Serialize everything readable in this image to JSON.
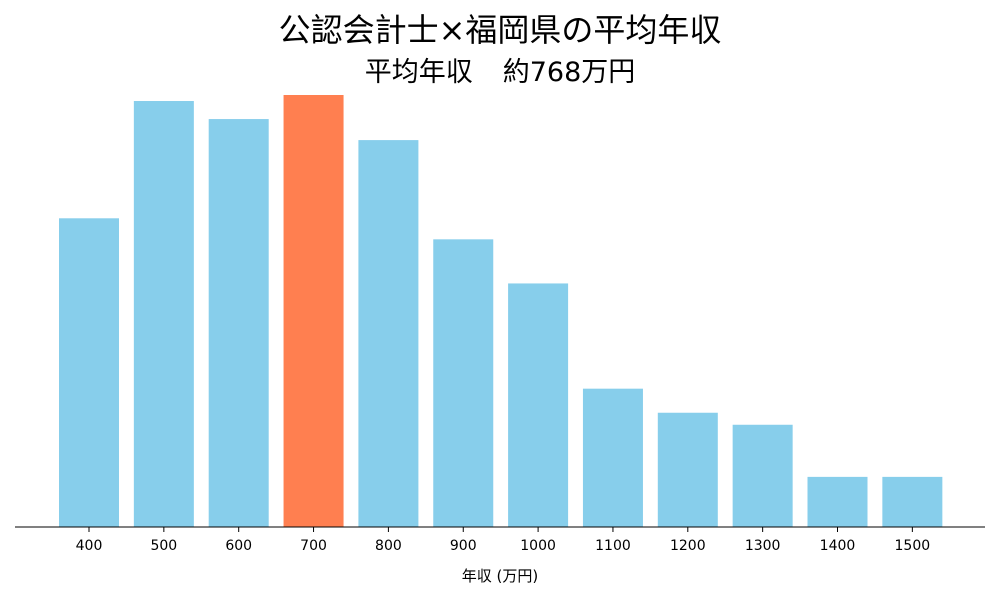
{
  "title": "公認会計士×福岡県の平均年収",
  "subtitle_label": "平均年収",
  "subtitle_value": "約768万円",
  "colors": {
    "bar": "#87CEEB",
    "highlight": "#FF7F50",
    "axis": "#000000"
  },
  "chart_data": {
    "type": "bar",
    "title": "公認会計士×福岡県の平均年収",
    "subtitle": "平均年収　約768万円",
    "xlabel": "年収 (万円)",
    "ylabel": "",
    "categories": [
      "400",
      "500",
      "600",
      "700",
      "800",
      "900",
      "1000",
      "1100",
      "1200",
      "1300",
      "1400",
      "1500"
    ],
    "values": [
      30.8,
      42.5,
      40.7,
      43.1,
      38.6,
      28.7,
      24.3,
      13.8,
      11.4,
      10.2,
      5.0,
      5.0
    ],
    "highlight_category": "700",
    "ylim": [
      0,
      43.1
    ],
    "y_axis_visible": false,
    "grid": false,
    "legend": "none"
  }
}
